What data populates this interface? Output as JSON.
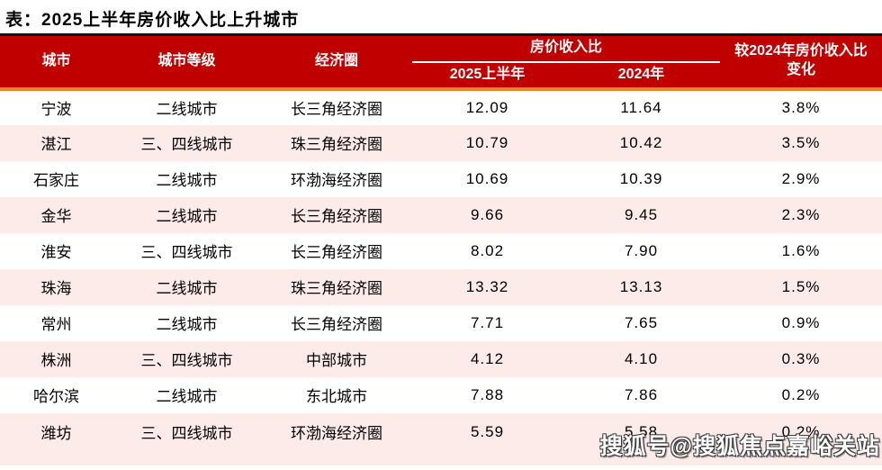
{
  "title": "表：2025上半年房价收入比上升城市",
  "colors": {
    "header_red": "#C00000",
    "header_top_rule": "#141414",
    "header_bottom_rule_orange": "#E88233",
    "stripe_pink": "#FCEBE9",
    "header_text": "#FFFFFF",
    "body_text": "#000000"
  },
  "table": {
    "headers": {
      "city": "城市",
      "tier": "城市等级",
      "circle": "经济圈",
      "ratio_group": "房价收入比",
      "ratio_2025": "2025上半年",
      "ratio_2024": "2024年",
      "change": "较2024年房价收入比变化"
    },
    "rows": [
      {
        "city": "宁波",
        "tier": "二线城市",
        "circle": "长三角经济圈",
        "h1_2025": "12.09",
        "y2024": "11.64",
        "change": "3.8%"
      },
      {
        "city": "湛江",
        "tier": "三、四线城市",
        "circle": "珠三角经济圈",
        "h1_2025": "10.79",
        "y2024": "10.42",
        "change": "3.5%"
      },
      {
        "city": "石家庄",
        "tier": "二线城市",
        "circle": "环渤海经济圈",
        "h1_2025": "10.69",
        "y2024": "10.39",
        "change": "2.9%"
      },
      {
        "city": "金华",
        "tier": "二线城市",
        "circle": "长三角经济圈",
        "h1_2025": "9.66",
        "y2024": "9.45",
        "change": "2.3%"
      },
      {
        "city": "淮安",
        "tier": "三、四线城市",
        "circle": "长三角经济圈",
        "h1_2025": "8.02",
        "y2024": "7.90",
        "change": "1.6%"
      },
      {
        "city": "珠海",
        "tier": "二线城市",
        "circle": "珠三角经济圈",
        "h1_2025": "13.32",
        "y2024": "13.13",
        "change": "1.5%"
      },
      {
        "city": "常州",
        "tier": "二线城市",
        "circle": "长三角经济圈",
        "h1_2025": "7.71",
        "y2024": "7.65",
        "change": "0.9%"
      },
      {
        "city": "株洲",
        "tier": "三、四线城市",
        "circle": "中部城市",
        "h1_2025": "4.12",
        "y2024": "4.10",
        "change": "0.3%"
      },
      {
        "city": "哈尔滨",
        "tier": "二线城市",
        "circle": "东北城市",
        "h1_2025": "7.88",
        "y2024": "7.86",
        "change": "0.2%"
      },
      {
        "city": "潍坊",
        "tier": "三、四线城市",
        "circle": "环渤海经济圈",
        "h1_2025": "5.59",
        "y2024": "5.58",
        "change": "0.2%"
      }
    ]
  },
  "watermark": "搜狐号@搜狐焦点嘉峪关站",
  "chart_data": {
    "type": "table",
    "title": "表：2025上半年房价收入比上升城市",
    "columns": [
      "城市",
      "城市等级",
      "经济圈",
      "房价收入比 2025上半年",
      "房价收入比 2024年",
      "较2024年房价收入比变化"
    ],
    "rows": [
      [
        "宁波",
        "二线城市",
        "长三角经济圈",
        12.09,
        11.64,
        "3.8%"
      ],
      [
        "湛江",
        "三、四线城市",
        "珠三角经济圈",
        10.79,
        10.42,
        "3.5%"
      ],
      [
        "石家庄",
        "二线城市",
        "环渤海经济圈",
        10.69,
        10.39,
        "2.9%"
      ],
      [
        "金华",
        "二线城市",
        "长三角经济圈",
        9.66,
        9.45,
        "2.3%"
      ],
      [
        "淮安",
        "三、四线城市",
        "长三角经济圈",
        8.02,
        7.9,
        "1.6%"
      ],
      [
        "珠海",
        "二线城市",
        "珠三角经济圈",
        13.32,
        13.13,
        "1.5%"
      ],
      [
        "常州",
        "二线城市",
        "长三角经济圈",
        7.71,
        7.65,
        "0.9%"
      ],
      [
        "株洲",
        "三、四线城市",
        "中部城市",
        4.12,
        4.1,
        "0.3%"
      ],
      [
        "哈尔滨",
        "二线城市",
        "东北城市",
        7.88,
        7.86,
        "0.2%"
      ],
      [
        "潍坊",
        "三、四线城市",
        "环渤海经济圈",
        5.59,
        5.58,
        "0.2%"
      ]
    ]
  }
}
